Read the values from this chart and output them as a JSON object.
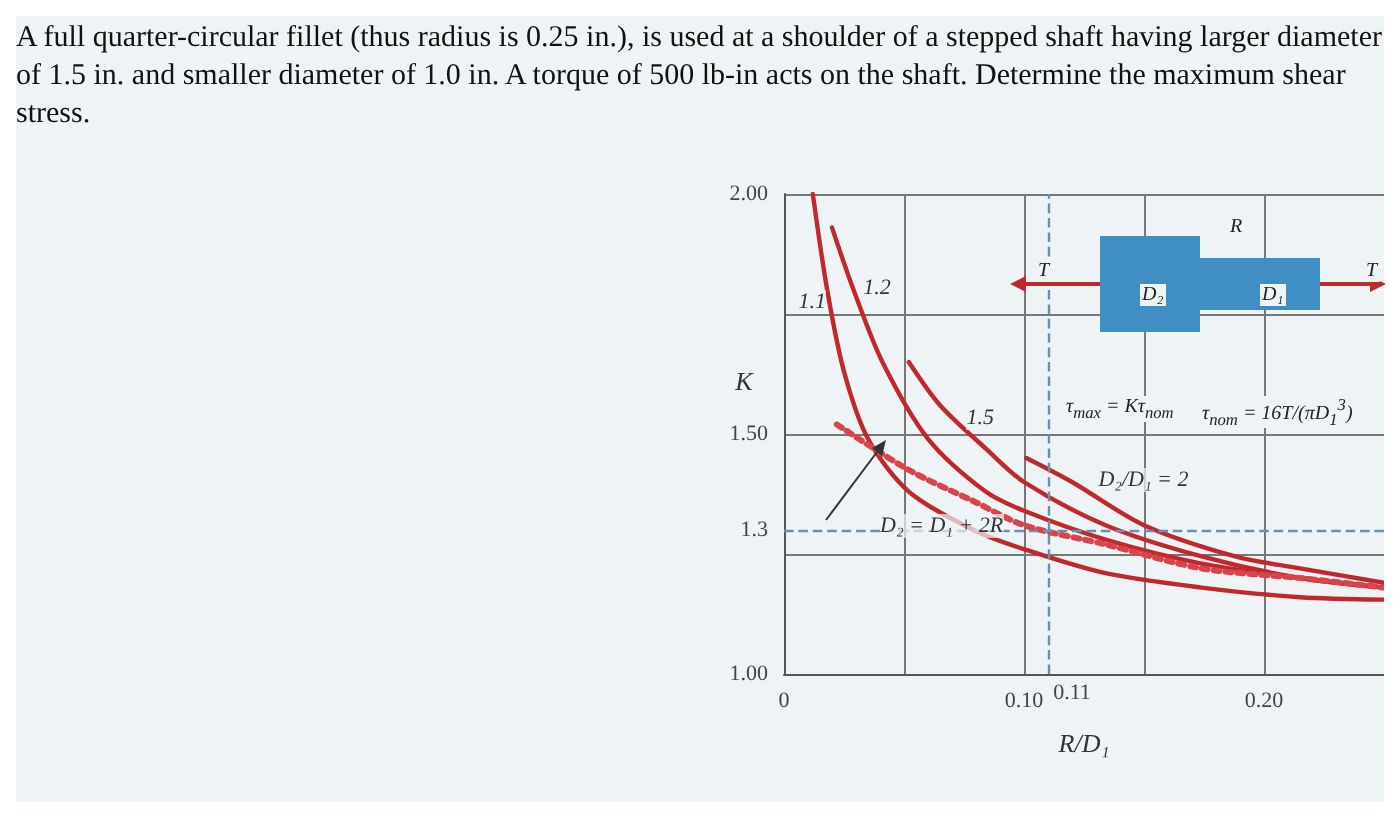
{
  "chart_data": {
    "type": "line",
    "title": "A full quarter-circular fillet (thus radius is 0.25 in.), is used at a shoulder of a stepped shaft having larger diameter of 1.5 in. and smaller diameter of 1.0 in. A torque of 500 lb-in acts on the shaft. Determine the maximum shear stress.",
    "xlabel": "R/D₁",
    "ylabel": "K",
    "series": [
      {
        "color": "#c0282d",
        "line_style": "solid",
        "x": [
          0.012,
          0.018,
          0.025,
          0.035,
          0.052,
          0.079,
          0.1,
          0.134,
          0.174,
          0.215,
          0.25
        ],
        "values": [
          2.0,
          1.8,
          1.63,
          1.49,
          1.38,
          1.3,
          1.26,
          1.21,
          1.18,
          1.16,
          1.155
        ]
      },
      {
        "color": "#c0282d",
        "line_style": "solid",
        "x": [
          0.02,
          0.029,
          0.041,
          0.06,
          0.084,
          0.1,
          0.134,
          0.174,
          0.215,
          0.25
        ],
        "values": [
          1.93,
          1.8,
          1.65,
          1.49,
          1.38,
          1.34,
          1.28,
          1.23,
          1.2,
          1.18
        ]
      },
      {
        "color": "#c0282d",
        "line_style": "solid",
        "x": [
          0.052,
          0.065,
          0.084,
          0.1,
          0.134,
          0.174,
          0.215,
          0.25
        ],
        "values": [
          1.65,
          1.56,
          1.47,
          1.4,
          1.31,
          1.245,
          1.2,
          1.18
        ]
      },
      {
        "color": "#c0282d",
        "line_style": "solid",
        "x": [
          0.101,
          0.12,
          0.15,
          0.188,
          0.215,
          0.25
        ],
        "values": [
          1.45,
          1.4,
          1.31,
          1.245,
          1.22,
          1.19
        ]
      },
      {
        "color": "#d9434b",
        "line_style": "dotted",
        "x": [
          0.022,
          0.052,
          0.079,
          0.1,
          0.134,
          0.174,
          0.215,
          0.25
        ],
        "values": [
          1.52,
          1.425,
          1.36,
          1.31,
          1.27,
          1.22,
          1.2,
          1.18
        ]
      }
    ],
    "xlim": [
      0,
      0.25
    ],
    "ylim": [
      1,
      2
    ],
    "xticks": [
      0,
      {
        "value": 0.05,
        "label": null
      },
      {
        "value": 0.1,
        "label": "0.10"
      },
      {
        "value": 0.15,
        "label": null
      },
      {
        "value": 0.2,
        "label": "0.20"
      }
    ],
    "yticks": [
      {
        "value": 1,
        "label": "1.00"
      },
      {
        "value": 1.25,
        "label": null
      },
      {
        "value": 1.5,
        "label": "1.50"
      },
      {
        "value": 1.75,
        "label": null
      },
      {
        "value": 2,
        "label": "2.00"
      }
    ],
    "grid": true,
    "marker": "none",
    "ref_lines": [
      {
        "axis": "x",
        "value": 0.11,
        "label": "0.11",
        "color": "#6a8fb0",
        "line_style": "dashed"
      },
      {
        "axis": "y",
        "value": 1.3,
        "label": "1.3",
        "color": "#6a8fb0",
        "line_style": "dashed"
      }
    ],
    "annotations": [
      "1.1",
      "1.2",
      "1.5",
      "D₂/D₁ = 2",
      "D₂ = D₁ + 2R",
      "T",
      "T",
      "R",
      "D₂",
      "D₁",
      "τ$_{max}$ = Kτ$_{nom}$",
      "τ$_{nom}$ = 16T/(πD$_{1}$$^{3}$)"
    ]
  }
}
